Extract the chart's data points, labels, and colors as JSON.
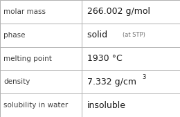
{
  "rows": [
    {
      "label": "molar mass",
      "value": "266.002 g/mol",
      "type": "plain"
    },
    {
      "label": "phase",
      "value": "solid",
      "suffix": "(at STP)",
      "type": "phase"
    },
    {
      "label": "melting point",
      "value": "1930 °C",
      "type": "plain"
    },
    {
      "label": "density",
      "value": "7.332 g/cm",
      "superscript": "3",
      "type": "super"
    },
    {
      "label": "solubility in water",
      "value": "insoluble",
      "type": "plain"
    }
  ],
  "background_color": "#ffffff",
  "border_color": "#b0b0b0",
  "label_color": "#404040",
  "value_color": "#1a1a1a",
  "suffix_color": "#707070",
  "label_fontsize": 7.5,
  "value_fontsize": 9.0,
  "suffix_fontsize": 6.0,
  "super_fontsize": 6.0,
  "col_split": 0.455,
  "fig_width": 2.6,
  "fig_height": 1.69,
  "dpi": 100
}
